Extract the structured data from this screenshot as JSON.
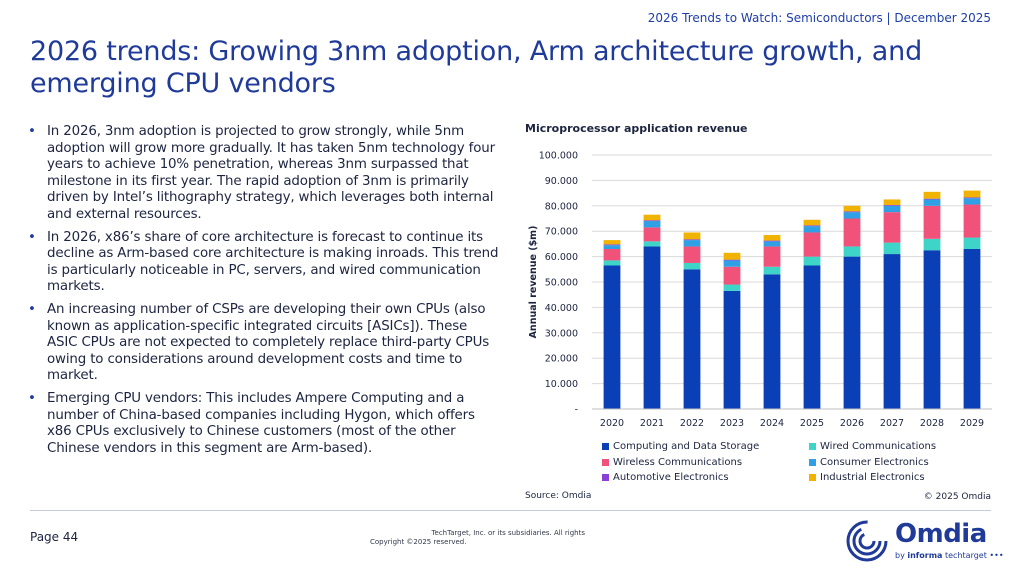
{
  "header": {
    "report": "2026 Trends to Watch: Semiconductors | December 2025",
    "title": "2026 trends: Growing 3nm adoption, Arm architecture growth, and emerging CPU vendors"
  },
  "bullets": [
    "In 2026, 3nm adoption is projected to grow strongly, while 5nm adoption will grow more gradually. It has taken 5nm technology four years to achieve 10% penetration, whereas 3nm surpassed that milestone in its first year. The rapid adoption of 3nm is primarily driven by Intel’s lithography strategy, which leverages both internal and external resources.",
    "In 2026, x86’s share of core architecture is forecast to continue its decline as Arm-based core architecture is making inroads. This trend is particularly noticeable in PC, servers, and wired communication markets.",
    "An increasing number of CSPs are developing their own CPUs (also known as application-specific integrated circuits [ASICs]). These ASIC CPUs are not expected to completely replace third-party CPUs owing to considerations around development costs and time to market.",
    "Emerging CPU vendors: This includes Ampere Computing and a number of China-based companies including Hygon, which offers x86 CPUs exclusively to Chinese customers (most of the other Chinese vendors in this segment are Arm-based)."
  ],
  "bullet_marker": "•",
  "chart_data": {
    "type": "bar",
    "stacked": true,
    "title": "Microprocessor application revenue",
    "ylabel": "Annual revenue ($m)",
    "xlabel": "",
    "ylim": [
      0,
      100000
    ],
    "yticks": [
      0,
      10000,
      20000,
      30000,
      40000,
      50000,
      60000,
      70000,
      80000,
      90000,
      100000
    ],
    "ytick_labels": [
      "-",
      "10.000",
      "20.000",
      "30.000",
      "40.000",
      "50.000",
      "60.000",
      "70.000",
      "80.000",
      "90.000",
      "100.000"
    ],
    "grid": true,
    "legend_position": "bottom",
    "categories": [
      "2020",
      "2021",
      "2022",
      "2023",
      "2024",
      "2025",
      "2026",
      "2027",
      "2028",
      "2029"
    ],
    "series": [
      {
        "name": "Computing and Data Storage",
        "color": "#0a3fb5",
        "values": [
          56500,
          64000,
          55000,
          46500,
          53000,
          56500,
          60000,
          61000,
          62500,
          63000
        ]
      },
      {
        "name": "Wired Communications",
        "color": "#3fd4c8",
        "values": [
          2000,
          2000,
          2500,
          2500,
          3000,
          3500,
          4000,
          4500,
          4500,
          4500
        ]
      },
      {
        "name": "Wireless Communications",
        "color": "#f0527a",
        "values": [
          4500,
          5500,
          6500,
          7000,
          8000,
          9500,
          11000,
          12000,
          13000,
          13000
        ]
      },
      {
        "name": "Consumer Electronics",
        "color": "#2f9fe6",
        "values": [
          1500,
          2500,
          2500,
          2500,
          2000,
          2500,
          2500,
          2500,
          2500,
          2500
        ]
      },
      {
        "name": "Automotive Electronics",
        "color": "#8a3fd6",
        "values": [
          300,
          300,
          300,
          300,
          300,
          300,
          300,
          300,
          300,
          300
        ]
      },
      {
        "name": "Industrial Electronics",
        "color": "#f0b400",
        "values": [
          1700,
          2200,
          2700,
          2700,
          2200,
          2200,
          2200,
          2200,
          2700,
          2700
        ]
      }
    ]
  },
  "source": "Source: Omdia",
  "chart_copyright": "© 2025 Omdia",
  "footer": {
    "page": "Page 44",
    "copyright_line1": "TechTarget, Inc. or its subsidiaries. All rights",
    "copyright_line2": "Copyright ©2025 reserved."
  },
  "logo": {
    "word": "Omdia",
    "sub_prefix": "by",
    "sub_brand": "informa",
    "sub_suffix": "techtarget"
  }
}
